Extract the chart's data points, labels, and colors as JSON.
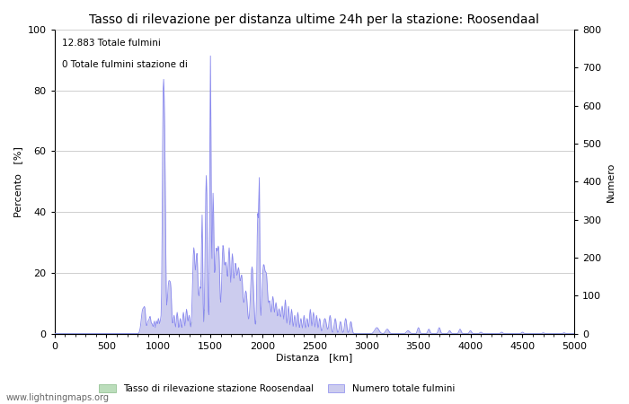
{
  "title": "Tasso di rilevazione per distanza ultime 24h per la stazione: Roosendaal",
  "xlabel": "Distanza   [km]",
  "ylabel_left": "Percento   [%]",
  "ylabel_right": "Numero",
  "annotation_line1": "12.883 Totale fulmini",
  "annotation_line2": "0 Totale fulmini stazione di",
  "xlim": [
    0,
    5000
  ],
  "ylim_left": [
    0,
    100
  ],
  "ylim_right": [
    0,
    800
  ],
  "xticks": [
    0,
    500,
    1000,
    1500,
    2000,
    2500,
    3000,
    3500,
    4000,
    4500,
    5000
  ],
  "yticks_left": [
    0,
    20,
    40,
    60,
    80,
    100
  ],
  "yticks_right": [
    0,
    100,
    200,
    300,
    400,
    500,
    600,
    700,
    800
  ],
  "legend_label_green": "Tasso di rilevazione stazione Roosendaal",
  "legend_label_blue": "Numero totale fulmini",
  "watermark": "www.lightningmaps.org",
  "line_color": "#8888ee",
  "fill_blue_color": "#ccccee",
  "fill_green_color": "#bbddbb",
  "background_color": "#ffffff",
  "grid_color": "#c8c8c8",
  "title_fontsize": 10,
  "axis_fontsize": 8,
  "tick_fontsize": 8
}
